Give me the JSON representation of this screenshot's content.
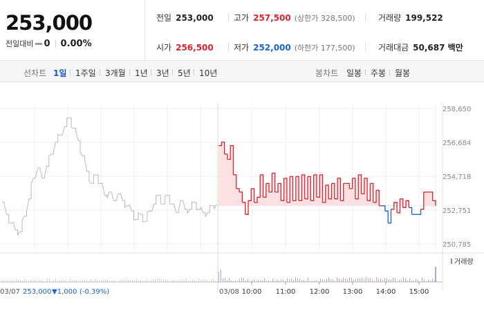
{
  "summary": {
    "current_price": "253,000",
    "change_label": "전일대비",
    "change_value": "0",
    "change_percent": "0.00%",
    "prev_close_label": "전일",
    "prev_close": "253,000",
    "open_label": "시가",
    "open": "256,500",
    "high_label": "고가",
    "high": "257,500",
    "upper_limit": "(상한가 328,500)",
    "low_label": "저가",
    "low": "252,000",
    "lower_limit": "(하한가 177,500)",
    "volume_label": "거래량",
    "volume": "199,522",
    "trade_value_label": "거래대금",
    "trade_value": "50,687 백만"
  },
  "toolbar": {
    "line_chart_label": "선차트",
    "periods": [
      "1일",
      "1주일",
      "3개월",
      "1년",
      "3년",
      "5년",
      "10년"
    ],
    "active_period": "1일",
    "candle_chart_label": "봉차트",
    "candle_periods": [
      "일봉",
      "주봉",
      "월봉"
    ]
  },
  "colors": {
    "up": "#e0212d",
    "down": "#1a61d6",
    "prev_day_line": "#b9b9b9",
    "up_fill": "#fbdcde"
  },
  "chart_data": {
    "type": "line",
    "y_ticks": [
      "258,650",
      "256,684",
      "254,718",
      "252,751",
      "250,785"
    ],
    "ylim": [
      250785,
      258650
    ],
    "baseline": 253000,
    "prev_day_label": "03/07",
    "prev_day_summary": "253,000",
    "prev_day_change": "▼1,000",
    "prev_day_change_pct": "(-0.39%)",
    "day_label": "03/08",
    "x_time_labels": [
      "10:00",
      "11:00",
      "12:00",
      "13:00",
      "14:00",
      "15:00"
    ],
    "volume_legend": "거래량",
    "series": [
      {
        "name": "03/07",
        "values": [
          253200,
          252500,
          252000,
          251600,
          251500,
          252400,
          253400,
          254600,
          255200,
          254600,
          255300,
          256000,
          256700,
          257100,
          257600,
          258100,
          257500,
          256800,
          255900,
          255000,
          254300,
          254800,
          254300,
          253600,
          253800,
          253300,
          253700,
          253300,
          253000,
          252700,
          252200,
          252500,
          252100,
          252700,
          253100,
          253600,
          253100,
          253600,
          253100,
          252600,
          253300,
          252800,
          252800,
          253200,
          252800,
          252600,
          252600,
          253000,
          253100
        ]
      },
      {
        "name": "03/08",
        "values": [
          256500,
          256700,
          256000,
          255700,
          256500,
          254800,
          254000,
          253800,
          253200,
          252500,
          253300,
          254000,
          253200,
          253500,
          254800,
          253500,
          254300,
          253800,
          254900,
          253800,
          254300,
          253300,
          254600,
          253200,
          254700,
          253300,
          254700,
          253300,
          254800,
          253400,
          254700,
          253300,
          254800,
          253500,
          254800,
          253200,
          254200,
          253400,
          254300,
          253400,
          254600,
          253300,
          254300,
          254300,
          254000,
          254600,
          253400,
          254800,
          253700,
          254600,
          253300,
          254300,
          253200,
          253900,
          253000,
          253000,
          252700,
          252000,
          252800,
          253200,
          252600,
          253400,
          252900,
          253300,
          252900,
          252500,
          252500,
          252500,
          252800,
          253800,
          253800,
          253800,
          253300,
          253000
        ]
      }
    ]
  }
}
